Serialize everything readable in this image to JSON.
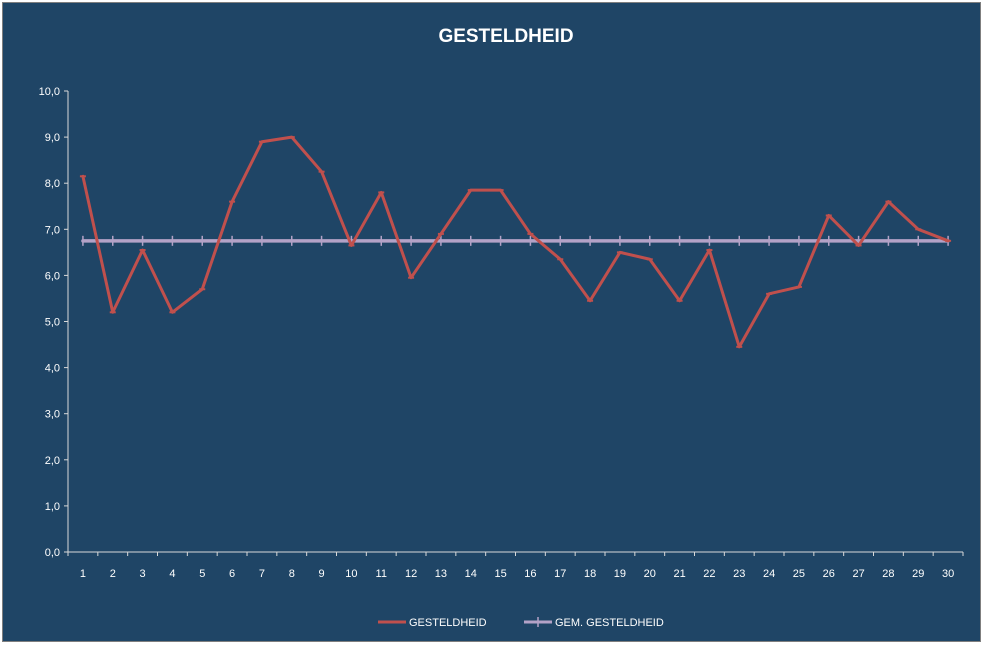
{
  "chart_data": {
    "type": "line",
    "title": "GESTELDHEID",
    "xlabel": "",
    "ylabel": "",
    "ylim": [
      0,
      10
    ],
    "yticks": [
      "0,0",
      "1,0",
      "2,0",
      "3,0",
      "4,0",
      "5,0",
      "6,0",
      "7,0",
      "8,0",
      "9,0",
      "10,0"
    ],
    "categories": [
      "1",
      "2",
      "3",
      "4",
      "5",
      "6",
      "7",
      "8",
      "9",
      "10",
      "11",
      "12",
      "13",
      "14",
      "15",
      "16",
      "17",
      "18",
      "19",
      "20",
      "21",
      "22",
      "23",
      "24",
      "25",
      "26",
      "27",
      "28",
      "29",
      "30"
    ],
    "grid": false,
    "legend_position": "bottom",
    "series": [
      {
        "name": "GESTELDHEID",
        "color": "#c0504d",
        "values": [
          8.15,
          5.2,
          6.55,
          5.2,
          5.7,
          7.6,
          8.9,
          9.0,
          8.25,
          6.65,
          7.8,
          5.95,
          6.9,
          7.85,
          7.85,
          6.9,
          6.35,
          5.45,
          6.5,
          6.35,
          5.45,
          6.55,
          4.45,
          5.6,
          5.75,
          7.3,
          6.65,
          7.6,
          7.0,
          6.75
        ]
      },
      {
        "name": "GEM. GESTELDHEID",
        "color": "#b3a2c7",
        "values": [
          6.75,
          6.75,
          6.75,
          6.75,
          6.75,
          6.75,
          6.75,
          6.75,
          6.75,
          6.75,
          6.75,
          6.75,
          6.75,
          6.75,
          6.75,
          6.75,
          6.75,
          6.75,
          6.75,
          6.75,
          6.75,
          6.75,
          6.75,
          6.75,
          6.75,
          6.75,
          6.75,
          6.75,
          6.75,
          6.75
        ]
      }
    ]
  },
  "colors": {
    "background": "#1f4566",
    "axis": "#d9d9d9",
    "text": "#ffffff"
  }
}
